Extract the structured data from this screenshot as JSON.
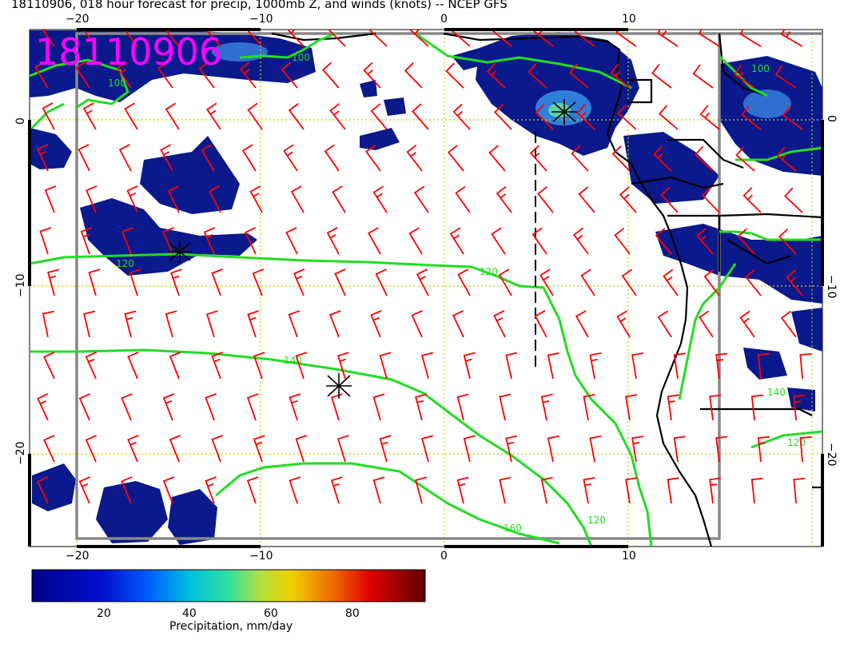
{
  "title": "18110906, 018 hour forecast for precip, 1000mb Z, and winds (knots) -- NCEP GFS",
  "stamp": "18110906",
  "map": {
    "lon_ticks": [
      {
        "label": "−20",
        "value": -20
      },
      {
        "label": "−10",
        "value": -10
      },
      {
        "label": "0",
        "value": 0
      },
      {
        "label": "10",
        "value": 10
      }
    ],
    "lat_ticks": [
      {
        "label": "0",
        "value": 0
      },
      {
        "label": "−10",
        "value": -10
      },
      {
        "label": "−20",
        "value": -20
      }
    ],
    "contour_labels": [
      {
        "text": "100"
      },
      {
        "text": "100"
      },
      {
        "text": "120"
      },
      {
        "text": "120"
      },
      {
        "text": "140"
      },
      {
        "text": "160"
      },
      {
        "text": "120"
      },
      {
        "text": "120"
      },
      {
        "text": "140"
      },
      {
        "text": "100"
      }
    ],
    "colors": {
      "wind_barbs": "#ff0000",
      "contours": "#22dd22",
      "precip_low": "#0a1a8c",
      "coastline": "#000000",
      "grid": "#cccc00",
      "stamp": "#ff00ff"
    }
  },
  "colorbar": {
    "ticks": [
      "20",
      "40",
      "60",
      "80"
    ],
    "title": "Precipitation, mm/day"
  }
}
